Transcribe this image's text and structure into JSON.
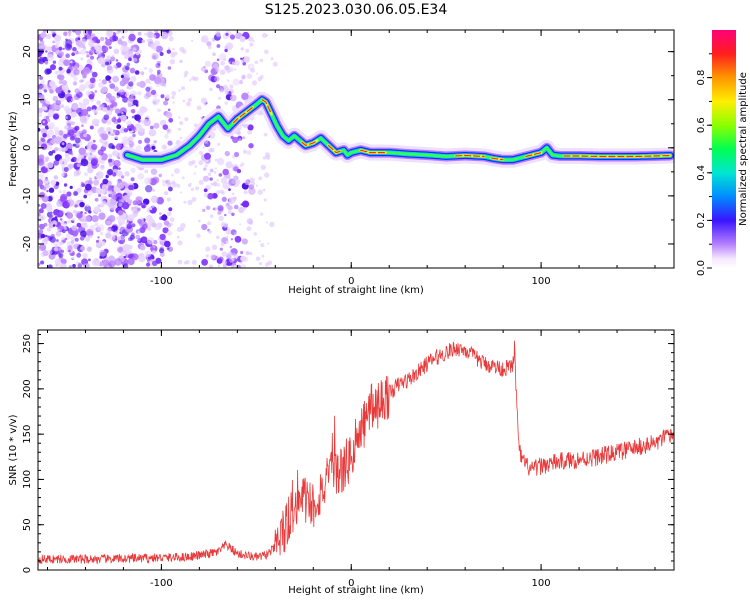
{
  "figure": {
    "title": "S125.2023.030.06.05.E34"
  },
  "chart_data": [
    {
      "type": "heatmap",
      "title": "S125.2023.030.06.05.E34",
      "xlabel": "Height of straight line (km)",
      "ylabel": "Frequency (Hz)",
      "xlim": [
        -165,
        170
      ],
      "ylim": [
        -25,
        24.5
      ],
      "x_ticks": [
        -100,
        0,
        100
      ],
      "x_tick_labels": [
        "-100",
        "0",
        "100"
      ],
      "y_ticks": [
        -20,
        -10,
        0,
        10,
        20
      ],
      "y_tick_labels": [
        "-20",
        "-10",
        "0",
        "10",
        "20"
      ],
      "colorbar": {
        "label": "Normalized spectral amplitude",
        "range": [
          0,
          1
        ],
        "ticks": [
          0.0,
          0.2,
          0.4,
          0.6,
          0.8
        ],
        "tick_labels": [
          "0.0",
          "0.2",
          "0.4",
          "0.6",
          "0.8"
        ],
        "colormap": "rainbow (white → violet → blue → cyan → green → yellow → red → magenta)"
      },
      "peak_frequency_track": {
        "x": [
          -118,
          -110,
          -100,
          -92,
          -85,
          -80,
          -75,
          -70,
          -65,
          -60,
          -55,
          -50,
          -47,
          -45,
          -42,
          -39,
          -36,
          -33,
          -30,
          -27,
          -24,
          -20,
          -16,
          -12,
          -8,
          -4,
          -2,
          0,
          5,
          10,
          20,
          30,
          40,
          50,
          60,
          70,
          75,
          80,
          85,
          90,
          95,
          100,
          103,
          106,
          110,
          120,
          130,
          140,
          150,
          160,
          168
        ],
        "y": [
          -1.5,
          -2.5,
          -2.5,
          -1.5,
          0.5,
          2.5,
          5.0,
          6.5,
          4.0,
          6.0,
          7.5,
          9.0,
          10.0,
          9.5,
          7.0,
          4.5,
          2.5,
          1.5,
          2.5,
          1.5,
          0.5,
          1.0,
          2.0,
          0.5,
          -1.0,
          -0.5,
          -1.5,
          -1.0,
          -0.5,
          -1.0,
          -1.0,
          -1.3,
          -1.5,
          -1.8,
          -1.6,
          -1.8,
          -2.2,
          -2.5,
          -2.5,
          -2.0,
          -1.5,
          -1.0,
          0.0,
          -1.5,
          -1.7,
          -1.7,
          -1.8,
          -1.8,
          -1.8,
          -1.7,
          -1.6
        ]
      }
    },
    {
      "type": "line",
      "xlabel": "Height of straight line (km)",
      "ylabel": "SNR (10 * v/v)",
      "xlim": [
        -165,
        170
      ],
      "ylim": [
        0,
        265
      ],
      "x_ticks": [
        -100,
        0,
        100
      ],
      "x_tick_labels": [
        "-100",
        "0",
        "100"
      ],
      "y_ticks": [
        0,
        50,
        100,
        150,
        200,
        250
      ],
      "y_tick_labels": [
        "0",
        "50",
        "100",
        "150",
        "200",
        "250"
      ],
      "line_color": "#e83a3a",
      "series": [
        {
          "x": [
            -165,
            -150,
            -130,
            -110,
            -90,
            -80,
            -70,
            -66,
            -60,
            -50,
            -45,
            -40,
            -35,
            -30,
            -25,
            -20,
            -15,
            -10,
            -5,
            0,
            5,
            10,
            15,
            20,
            25,
            30,
            35,
            40,
            45,
            50,
            55,
            60,
            65,
            70,
            75,
            80,
            85,
            86,
            88,
            90,
            95,
            100,
            110,
            120,
            130,
            140,
            150,
            160,
            170
          ],
          "y": [
            12,
            12,
            12,
            13,
            14,
            16,
            20,
            28,
            18,
            14,
            16,
            25,
            45,
            65,
            80,
            72,
            90,
            105,
            110,
            125,
            150,
            180,
            185,
            195,
            205,
            210,
            218,
            228,
            235,
            240,
            245,
            243,
            235,
            228,
            225,
            222,
            225,
            245,
            140,
            120,
            110,
            115,
            120,
            122,
            125,
            130,
            135,
            140,
            150
          ]
        }
      ]
    }
  ]
}
